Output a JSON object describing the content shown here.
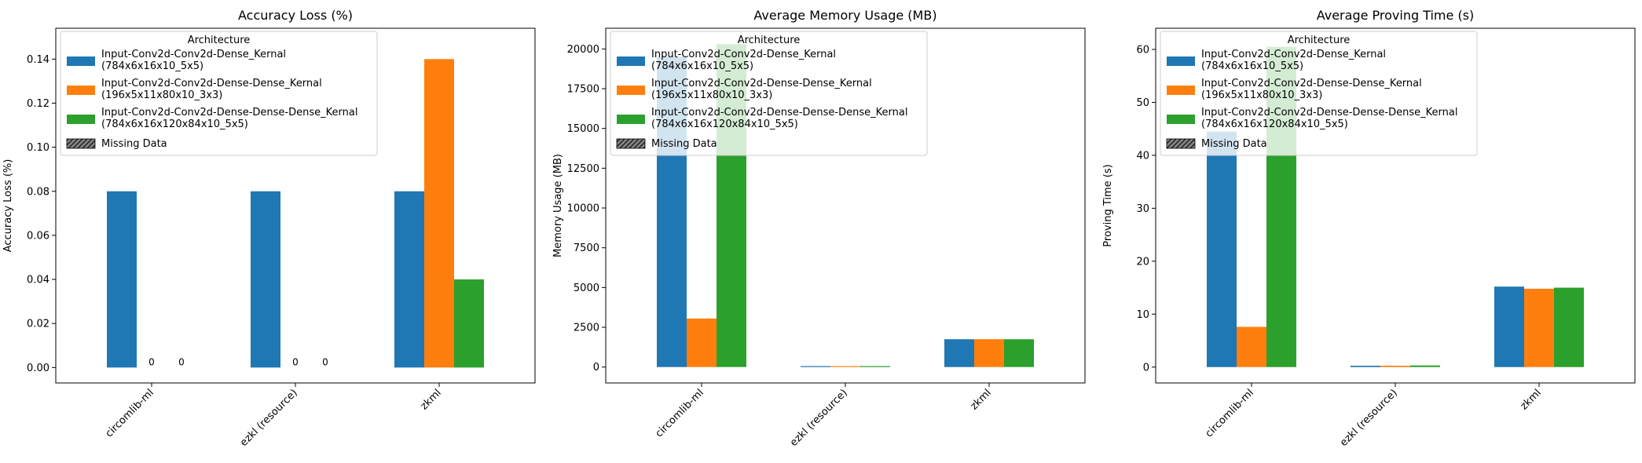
{
  "figure": {
    "legend": {
      "title": "Architecture",
      "missing_label": "Missing Data",
      "entries": [
        [
          "Input-Conv2d-Conv2d-Dense_Kernal",
          "(784x6x16x10_5x5)"
        ],
        [
          "Input-Conv2d-Conv2d-Dense-Dense_Kernal",
          "(196x5x11x80x10_3x3)"
        ],
        [
          "Input-Conv2d-Conv2d-Dense-Dense-Dense_Kernal",
          "(784x6x16x120x84x10_5x5)"
        ]
      ]
    },
    "colors": [
      "#1f77b4",
      "#ff7f0e",
      "#2ca02c"
    ],
    "missing_color": "#808080"
  },
  "chart_data": [
    {
      "type": "bar",
      "title": "Accuracy Loss (%)",
      "xlabel": "",
      "ylabel": "Accuracy Loss (%)",
      "categories": [
        "circomlib-ml",
        "ezkl (resource)",
        "zkml"
      ],
      "ylim": [
        -0.007,
        0.154
      ],
      "yticks": [
        0.0,
        0.02,
        0.04,
        0.06,
        0.08,
        0.1,
        0.12,
        0.14
      ],
      "ytick_labels": [
        "0.00",
        "0.02",
        "0.04",
        "0.06",
        "0.08",
        "0.10",
        "0.12",
        "0.14"
      ],
      "series": [
        {
          "name": "Input-Conv2d-Conv2d-Dense_Kernal (784x6x16x10_5x5)",
          "values": [
            0.08,
            0.08,
            0.08
          ]
        },
        {
          "name": "Input-Conv2d-Conv2d-Dense-Dense_Kernal (196x5x11x80x10_3x3)",
          "values": [
            0,
            0,
            0.14
          ]
        },
        {
          "name": "Input-Conv2d-Conv2d-Dense-Dense-Dense_Kernal (784x6x16x120x84x10_5x5)",
          "values": [
            0,
            0,
            0.04
          ]
        }
      ],
      "data_labels": [
        {
          "category": "circomlib-ml",
          "series": 1,
          "text": "0"
        },
        {
          "category": "circomlib-ml",
          "series": 2,
          "text": "0"
        },
        {
          "category": "ezkl (resource)",
          "series": 1,
          "text": "0"
        },
        {
          "category": "ezkl (resource)",
          "series": 2,
          "text": "0"
        }
      ],
      "legend": "upper left"
    },
    {
      "type": "bar",
      "title": "Average Memory Usage (MB)",
      "xlabel": "",
      "ylabel": "Memory Usage (MB)",
      "categories": [
        "circomlib-ml",
        "ezkl (resource)",
        "zkml"
      ],
      "ylim": [
        -1000,
        21300
      ],
      "yticks": [
        0,
        2500,
        5000,
        7500,
        10000,
        12500,
        15000,
        17500,
        20000
      ],
      "ytick_labels": [
        "0",
        "2500",
        "5000",
        "7500",
        "10000",
        "12500",
        "15000",
        "17500",
        "20000"
      ],
      "series": [
        {
          "name": "Input-Conv2d-Conv2d-Dense_Kernal (784x6x16x10_5x5)",
          "values": [
            19500,
            60,
            1750
          ]
        },
        {
          "name": "Input-Conv2d-Conv2d-Dense-Dense_Kernal (196x5x11x80x10_3x3)",
          "values": [
            3050,
            60,
            1750
          ]
        },
        {
          "name": "Input-Conv2d-Conv2d-Dense-Dense-Dense_Kernal (784x6x16x120x84x10_5x5)",
          "values": [
            20300,
            60,
            1750
          ]
        }
      ],
      "legend": "upper left"
    },
    {
      "type": "bar",
      "title": "Average Proving Time (s)",
      "xlabel": "",
      "ylabel": "Proving Time (s)",
      "categories": [
        "circomlib-ml",
        "ezkl (resource)",
        "zkml"
      ],
      "ylim": [
        -3,
        64
      ],
      "yticks": [
        0,
        10,
        20,
        30,
        40,
        50,
        60
      ],
      "ytick_labels": [
        "0",
        "10",
        "20",
        "30",
        "40",
        "50",
        "60"
      ],
      "series": [
        {
          "name": "Input-Conv2d-Conv2d-Dense_Kernal (784x6x16x10_5x5)",
          "values": [
            44.5,
            0.25,
            15.2
          ]
        },
        {
          "name": "Input-Conv2d-Conv2d-Dense-Dense_Kernal (196x5x11x80x10_3x3)",
          "values": [
            7.6,
            0.25,
            14.8
          ]
        },
        {
          "name": "Input-Conv2d-Conv2d-Dense-Dense-Dense_Kernal (784x6x16x120x84x10_5x5)",
          "values": [
            60.5,
            0.3,
            15.0
          ]
        }
      ],
      "legend": "upper left"
    }
  ]
}
